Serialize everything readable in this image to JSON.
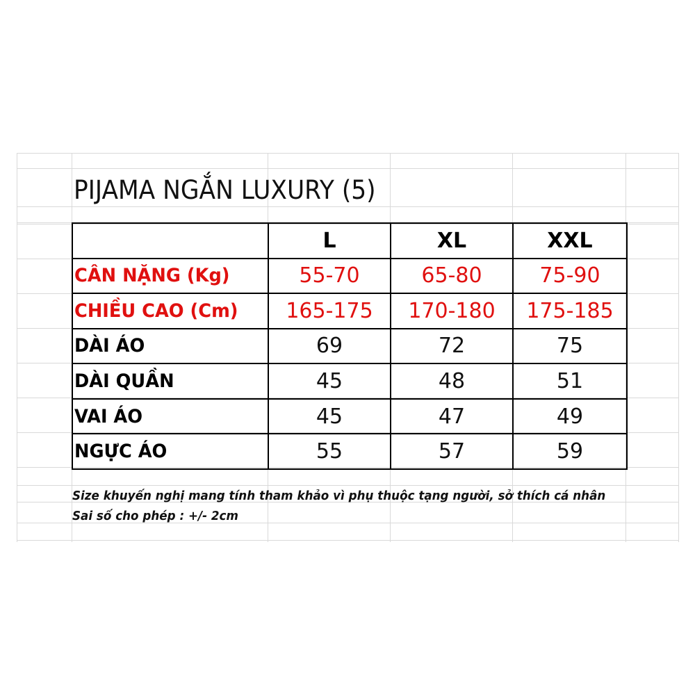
{
  "title": "PIJAMA NGẮN LUXURY (5)",
  "columns": [
    "",
    "L",
    "XL",
    "XXL"
  ],
  "rows": [
    {
      "label": "CÂN NẶNG (Kg)",
      "values": [
        "55-70",
        "65-80",
        "75-90"
      ],
      "highlight": true
    },
    {
      "label": "CHIỀU CAO (Cm)",
      "values": [
        "165-175",
        "170-180",
        "175-185"
      ],
      "highlight": true
    },
    {
      "label": "DÀI ÁO",
      "values": [
        "69",
        "72",
        "75"
      ],
      "highlight": false
    },
    {
      "label": "DÀI QUẦN",
      "values": [
        "45",
        "48",
        "51"
      ],
      "highlight": false
    },
    {
      "label": "VAI ÁO",
      "values": [
        "45",
        "47",
        "49"
      ],
      "highlight": false
    },
    {
      "label": "NGỰC ÁO",
      "values": [
        "55",
        "57",
        "59"
      ],
      "highlight": false
    }
  ],
  "notes": [
    "Size khuyến nghị mang tính tham khảo vì phụ thuộc tạng người, sở thích cá nhân",
    "Sai số cho phép : +/- 2cm"
  ],
  "colors": {
    "highlight": "#e0100f",
    "grid": "#d9d9d9",
    "border": "#000000"
  }
}
